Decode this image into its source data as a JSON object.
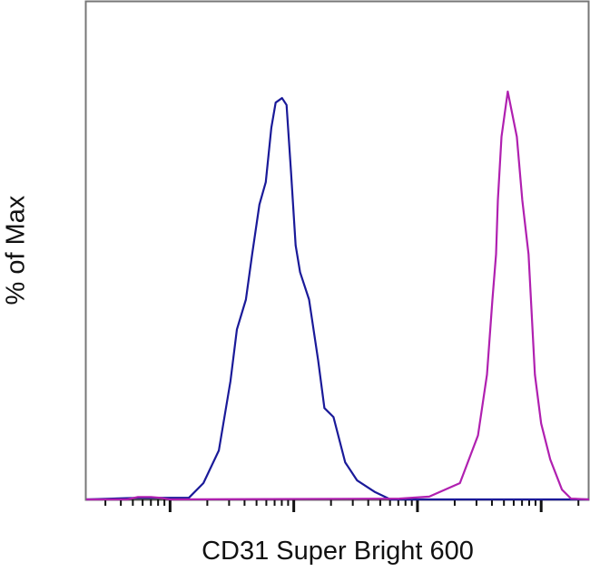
{
  "chart_data": {
    "type": "line",
    "title": "",
    "xlabel": "CD31 Super Bright 600",
    "ylabel": "% of Max",
    "xscale": "log",
    "xlim": [
      21,
      244000
    ],
    "ylim": [
      0,
      122
    ],
    "grid": false,
    "legend": "none",
    "series": [
      {
        "color": "#1a1a99",
        "x": [
          21,
          55,
          83,
          142,
          186,
          248,
          308,
          347,
          410,
          461,
          528,
          594,
          658,
          714,
          804,
          875,
          951,
          1035,
          1125,
          1330,
          1574,
          1770,
          2094,
          2606,
          3243,
          4539,
          6039,
          244000
        ],
        "y": [
          0,
          0.4,
          0.4,
          0.4,
          4.0,
          12.0,
          29.0,
          41.7,
          49.0,
          60.1,
          72.3,
          77.8,
          91.1,
          97.3,
          98.4,
          96.7,
          80.0,
          62.3,
          55.7,
          49.0,
          34.1,
          22.4,
          20.2,
          9.1,
          4.7,
          1.8,
          0,
          0
        ]
      },
      {
        "color": "#b020b0",
        "x": [
          21,
          45,
          55,
          70,
          83,
          100,
          7145,
          12450,
          22030,
          30830,
          36480,
          40350,
          43150,
          44670,
          47750,
          53730,
          63530,
          70310,
          79070,
          88960,
          100000,
          118300,
          147200,
          174200,
          244000
        ],
        "y": [
          0,
          0,
          0.6,
          0.6,
          0.4,
          0,
          0.2,
          0.7,
          4.0,
          15.7,
          30.6,
          49.0,
          60.1,
          73.4,
          88.9,
          100,
          88.9,
          73.4,
          60.1,
          30.6,
          18.6,
          9.8,
          2.4,
          0.2,
          0
        ]
      }
    ]
  }
}
